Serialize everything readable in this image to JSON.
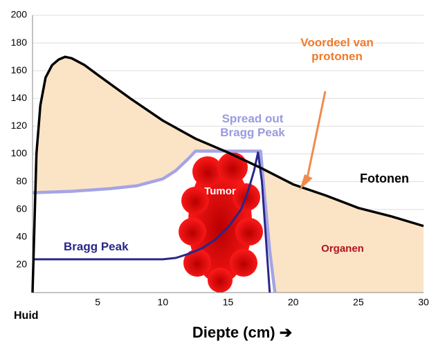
{
  "chart_data": {
    "type": "line",
    "x_label": "Diepte (cm) ➔",
    "xlim": [
      0,
      30
    ],
    "xticks": [
      5,
      10,
      15,
      20,
      25,
      30
    ],
    "ylim": [
      0,
      200
    ],
    "yticks": [
      20,
      40,
      60,
      80,
      100,
      120,
      140,
      160,
      180,
      200
    ],
    "grid": true,
    "area_color": "#fbe3c6",
    "series": [
      {
        "name": "Fotonen",
        "color": "#000000",
        "x": [
          0,
          0.3,
          0.6,
          1,
          1.5,
          2,
          2.5,
          3,
          4,
          5,
          7.5,
          10,
          12.5,
          15,
          17.5,
          20,
          22.5,
          25,
          27.5,
          30
        ],
        "values": [
          0,
          100,
          135,
          155,
          164,
          168,
          170,
          169,
          164,
          157,
          140,
          124,
          111,
          101,
          90,
          78,
          70,
          61,
          55,
          48
        ]
      },
      {
        "name": "Spread out Bragg Peak",
        "color": "#a4a4e6",
        "x": [
          0,
          3,
          6,
          8,
          10,
          11,
          12,
          12.5,
          15,
          17.5,
          17.8,
          18.2,
          18.6
        ],
        "values": [
          72,
          73,
          75,
          77,
          82,
          88,
          97,
          102,
          102,
          102,
          70,
          30,
          0
        ]
      },
      {
        "name": "Bragg Peak",
        "color": "#27278a",
        "x": [
          0,
          5,
          10,
          11,
          12,
          13,
          14,
          15,
          16,
          16.5,
          17,
          17.3,
          17.6,
          17.9,
          18.2
        ],
        "values": [
          24,
          24,
          24,
          25,
          28,
          32,
          38,
          47,
          60,
          72,
          88,
          101,
          80,
          40,
          0
        ]
      }
    ],
    "annotations": {
      "skin": "Huid",
      "tumor": "Tumor",
      "organs": "Organen",
      "benefit": "Voordeel van protonen"
    }
  }
}
